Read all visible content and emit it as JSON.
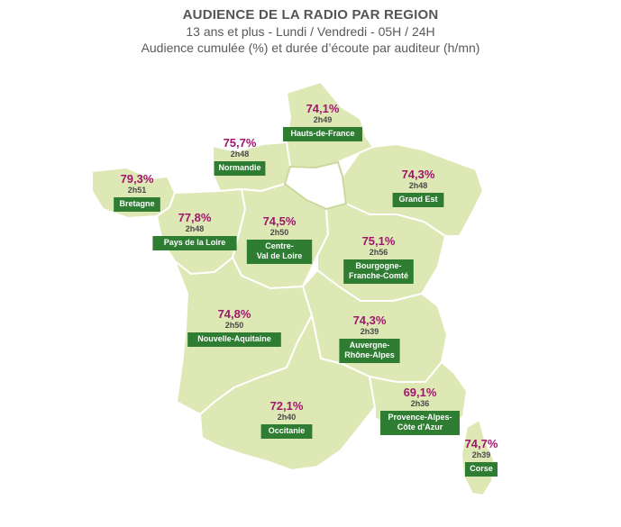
{
  "header": {
    "title": "AUDIENCE DE LA RADIO PAR REGION",
    "subtitle1": "13 ans et plus - Lundi / Vendredi - 05H / 24H",
    "subtitle2": "Audience cumulée (%) et durée d’écoute par auditeur (h/mn)"
  },
  "colors": {
    "land": "#dde8b4",
    "label_bg": "#2e7d32",
    "percent": "#a0166c"
  },
  "regions": [
    {
      "key": "hauts",
      "name": "Hauts-de-France",
      "audience": "74,1%",
      "duration": "2h49"
    },
    {
      "key": "normandie",
      "name": "Normandie",
      "audience": "75,7%",
      "duration": "2h48"
    },
    {
      "key": "bretagne",
      "name": "Bretagne",
      "audience": "79,3%",
      "duration": "2h51"
    },
    {
      "key": "grandest",
      "name": "Grand Est",
      "audience": "74,3%",
      "duration": "2h48"
    },
    {
      "key": "pdl",
      "name": "Pays de la Loire",
      "audience": "77,8%",
      "duration": "2h48"
    },
    {
      "key": "cvl",
      "name": "Centre-\nVal de Loire",
      "audience": "74,5%",
      "duration": "2h50"
    },
    {
      "key": "bfc",
      "name": "Bourgogne-\nFranche-Comté",
      "audience": "75,1%",
      "duration": "2h56"
    },
    {
      "key": "naq",
      "name": "Nouvelle-Aquitaine",
      "audience": "74,8%",
      "duration": "2h50"
    },
    {
      "key": "ara",
      "name": "Auvergne-\nRhône-Alpes",
      "audience": "74,3%",
      "duration": "2h39"
    },
    {
      "key": "occ",
      "name": "Occitanie",
      "audience": "72,1%",
      "duration": "2h40"
    },
    {
      "key": "paca",
      "name": "Provence-Alpes-\nCôte d’Azur",
      "audience": "69,1%",
      "duration": "2h36"
    },
    {
      "key": "corse",
      "name": "Corse",
      "audience": "74,7%",
      "duration": "2h39"
    }
  ]
}
